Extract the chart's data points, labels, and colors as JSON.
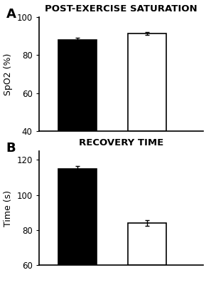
{
  "panel_A": {
    "title": "POST-EXERCISE SATURATION",
    "ylabel": "SpO2 (%)",
    "ylim": [
      40,
      100
    ],
    "yticks": [
      40,
      60,
      80,
      100
    ],
    "bar_values": [
      88,
      91.5
    ],
    "bar_errors": [
      1.2,
      0.8
    ],
    "bar_colors": [
      "black",
      "white"
    ],
    "bar_edgecolors": [
      "black",
      "black"
    ]
  },
  "panel_B": {
    "title": "RECOVERY TIME",
    "ylabel": "Time (s)",
    "ylim": [
      60,
      125
    ],
    "yticks": [
      60,
      80,
      100,
      120
    ],
    "bar_values": [
      115,
      84
    ],
    "bar_errors": [
      1.5,
      1.5
    ],
    "bar_colors": [
      "black",
      "white"
    ],
    "bar_edgecolors": [
      "black",
      "black"
    ]
  },
  "bar_width": 0.55,
  "bar_positions": [
    0.75,
    1.75
  ],
  "label_fontsize": 9,
  "title_fontsize": 9.5,
  "tick_fontsize": 8.5,
  "panel_label_fontsize": 13,
  "background_color": "#ffffff"
}
